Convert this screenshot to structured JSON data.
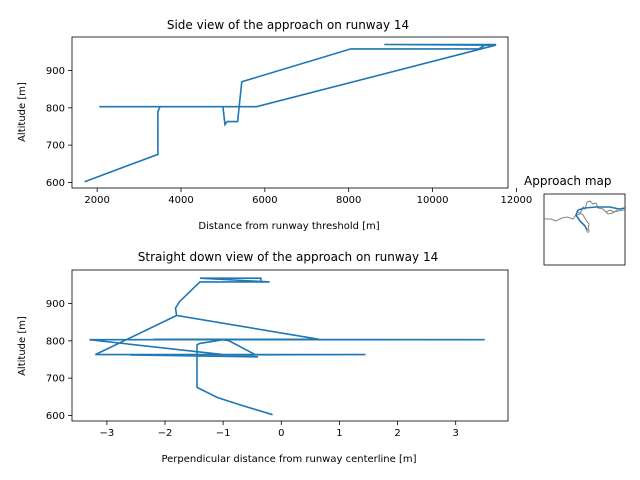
{
  "line_color": "#1f77b4",
  "map_color": "#808080",
  "chart_data": [
    {
      "type": "line",
      "title": "Side view of the approach on runway 14",
      "xlabel": "Distance from runway threshold [m]",
      "ylabel": "Altitude [m]",
      "xlim": [
        1400,
        11800
      ],
      "ylim": [
        585,
        990
      ],
      "xticks": [
        2000,
        4000,
        6000,
        8000,
        10000,
        12000
      ],
      "yticks": [
        600,
        700,
        800,
        900
      ],
      "grid": false,
      "series": [
        {
          "x": [
            1700,
            3450,
            3450,
            3500,
            4200,
            5000,
            5050,
            5100,
            5350,
            5450,
            8050,
            11100,
            11250,
            11500,
            8850,
            11500,
            11500,
            5800,
            2050,
            4200,
            5000
          ],
          "y": [
            602,
            675,
            790,
            803,
            803,
            803,
            755,
            763,
            763,
            870,
            958,
            958,
            968,
            968,
            970,
            970,
            968,
            803,
            803,
            803,
            803
          ]
        }
      ]
    },
    {
      "type": "line",
      "title": "Straight down view of the approach on runway 14",
      "xlabel": "Perpendicular distance from runway centerline [m]",
      "ylabel": "Altitude [m]",
      "xlim": [
        -3.6,
        3.9
      ],
      "ylim": [
        585,
        990
      ],
      "xticks": [
        -3,
        -2,
        -1,
        0,
        1,
        2,
        3
      ],
      "yticks": [
        600,
        700,
        800,
        900
      ],
      "grid": false,
      "series": [
        {
          "x": [
            -0.15,
            -0.7,
            -1.1,
            -1.45,
            -1.45,
            -1.4,
            -1.0,
            -0.9,
            -0.45,
            -3.2,
            1.45,
            -2.6,
            -0.4,
            -1.0,
            -3.3,
            3.5,
            -2.2,
            -0.5,
            0.65,
            -1.8,
            -3.2,
            -1.8,
            -1.82,
            -1.75,
            -1.4,
            -0.2,
            -0.2,
            -1.4,
            -0.35,
            -0.35
          ],
          "y": [
            602,
            628,
            648,
            675,
            790,
            793,
            803,
            800,
            763,
            763,
            763,
            762,
            757,
            763,
            803,
            803,
            804,
            804,
            804,
            868,
            763,
            868,
            888,
            905,
            958,
            958,
            958,
            968,
            968,
            958
          ]
        }
      ]
    }
  ],
  "map": {
    "title": "Approach map"
  }
}
